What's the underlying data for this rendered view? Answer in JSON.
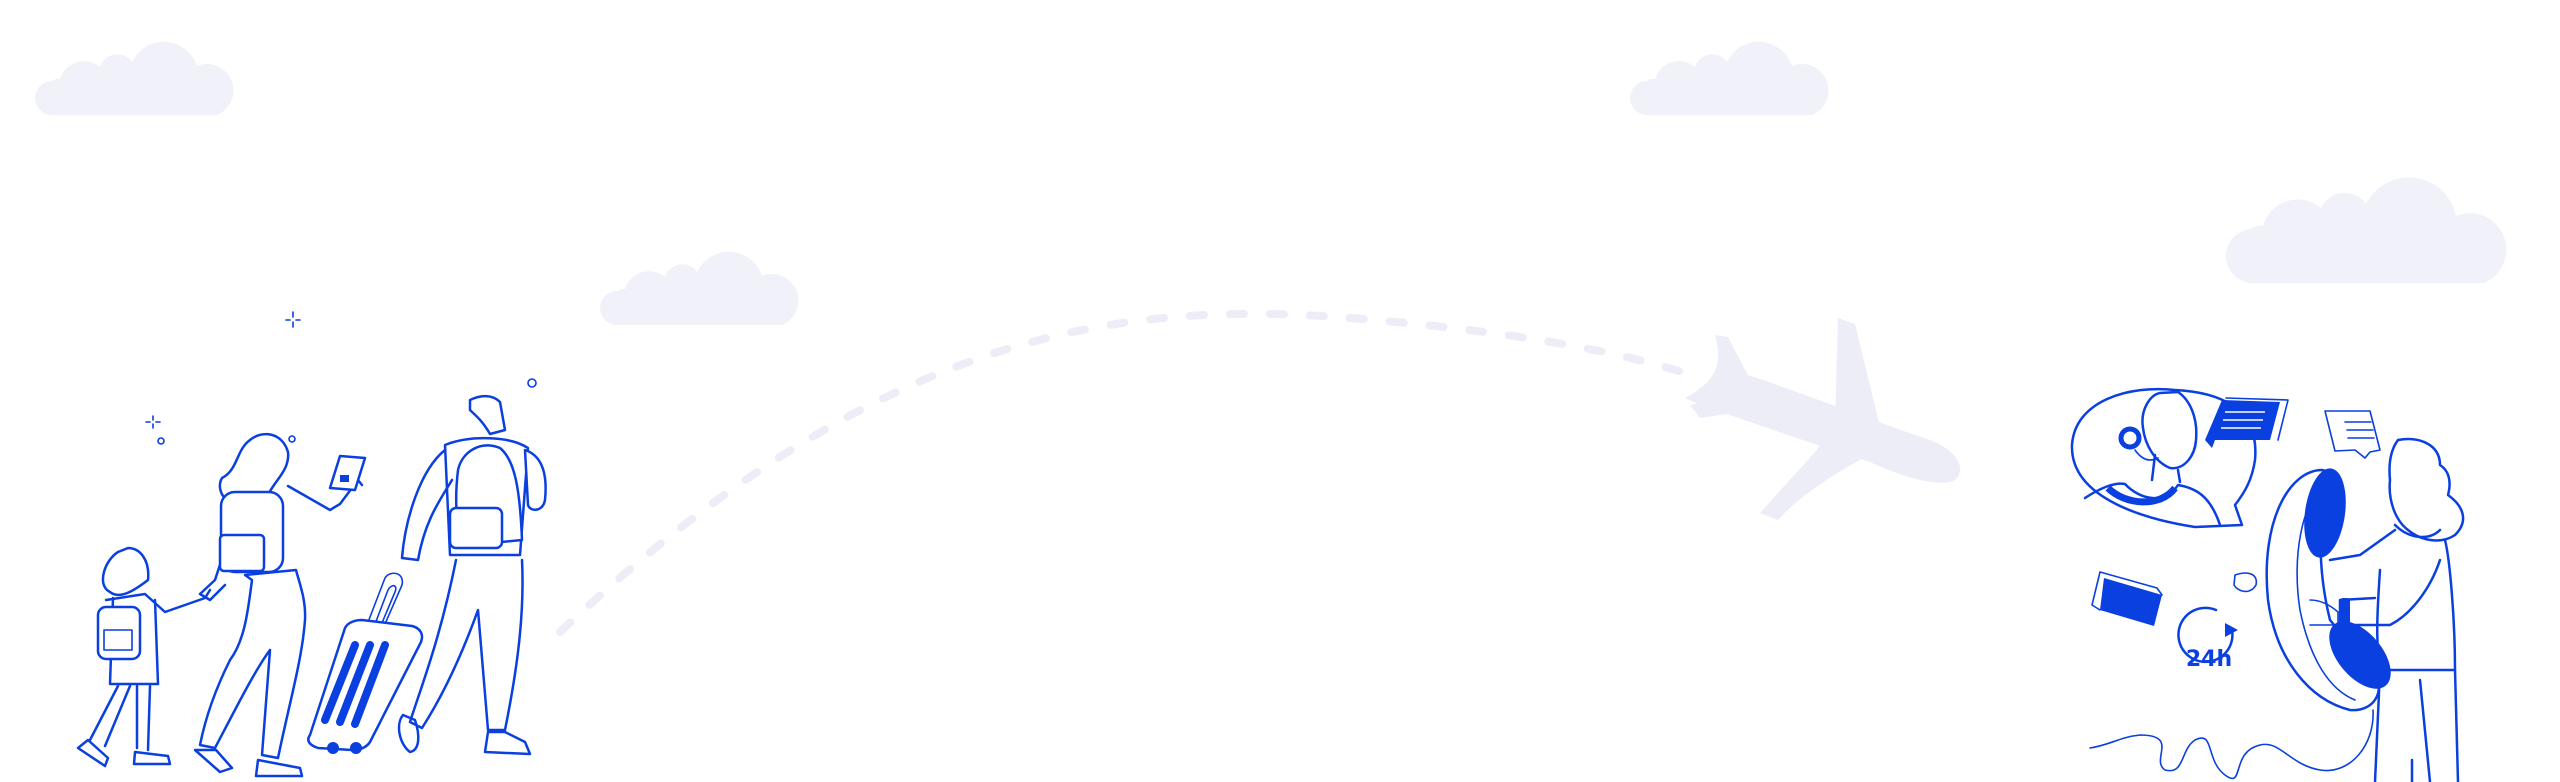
{
  "illustration": {
    "theme": "family travel and 24-hour customer support",
    "support_badge": {
      "label": "24h",
      "icon": "clock-rotate-arrow-icon"
    },
    "colors": {
      "accent": "#0a3fe0",
      "cloud": "#f1f1fa",
      "plane": "#ededf8",
      "background": "#ffffff"
    }
  }
}
